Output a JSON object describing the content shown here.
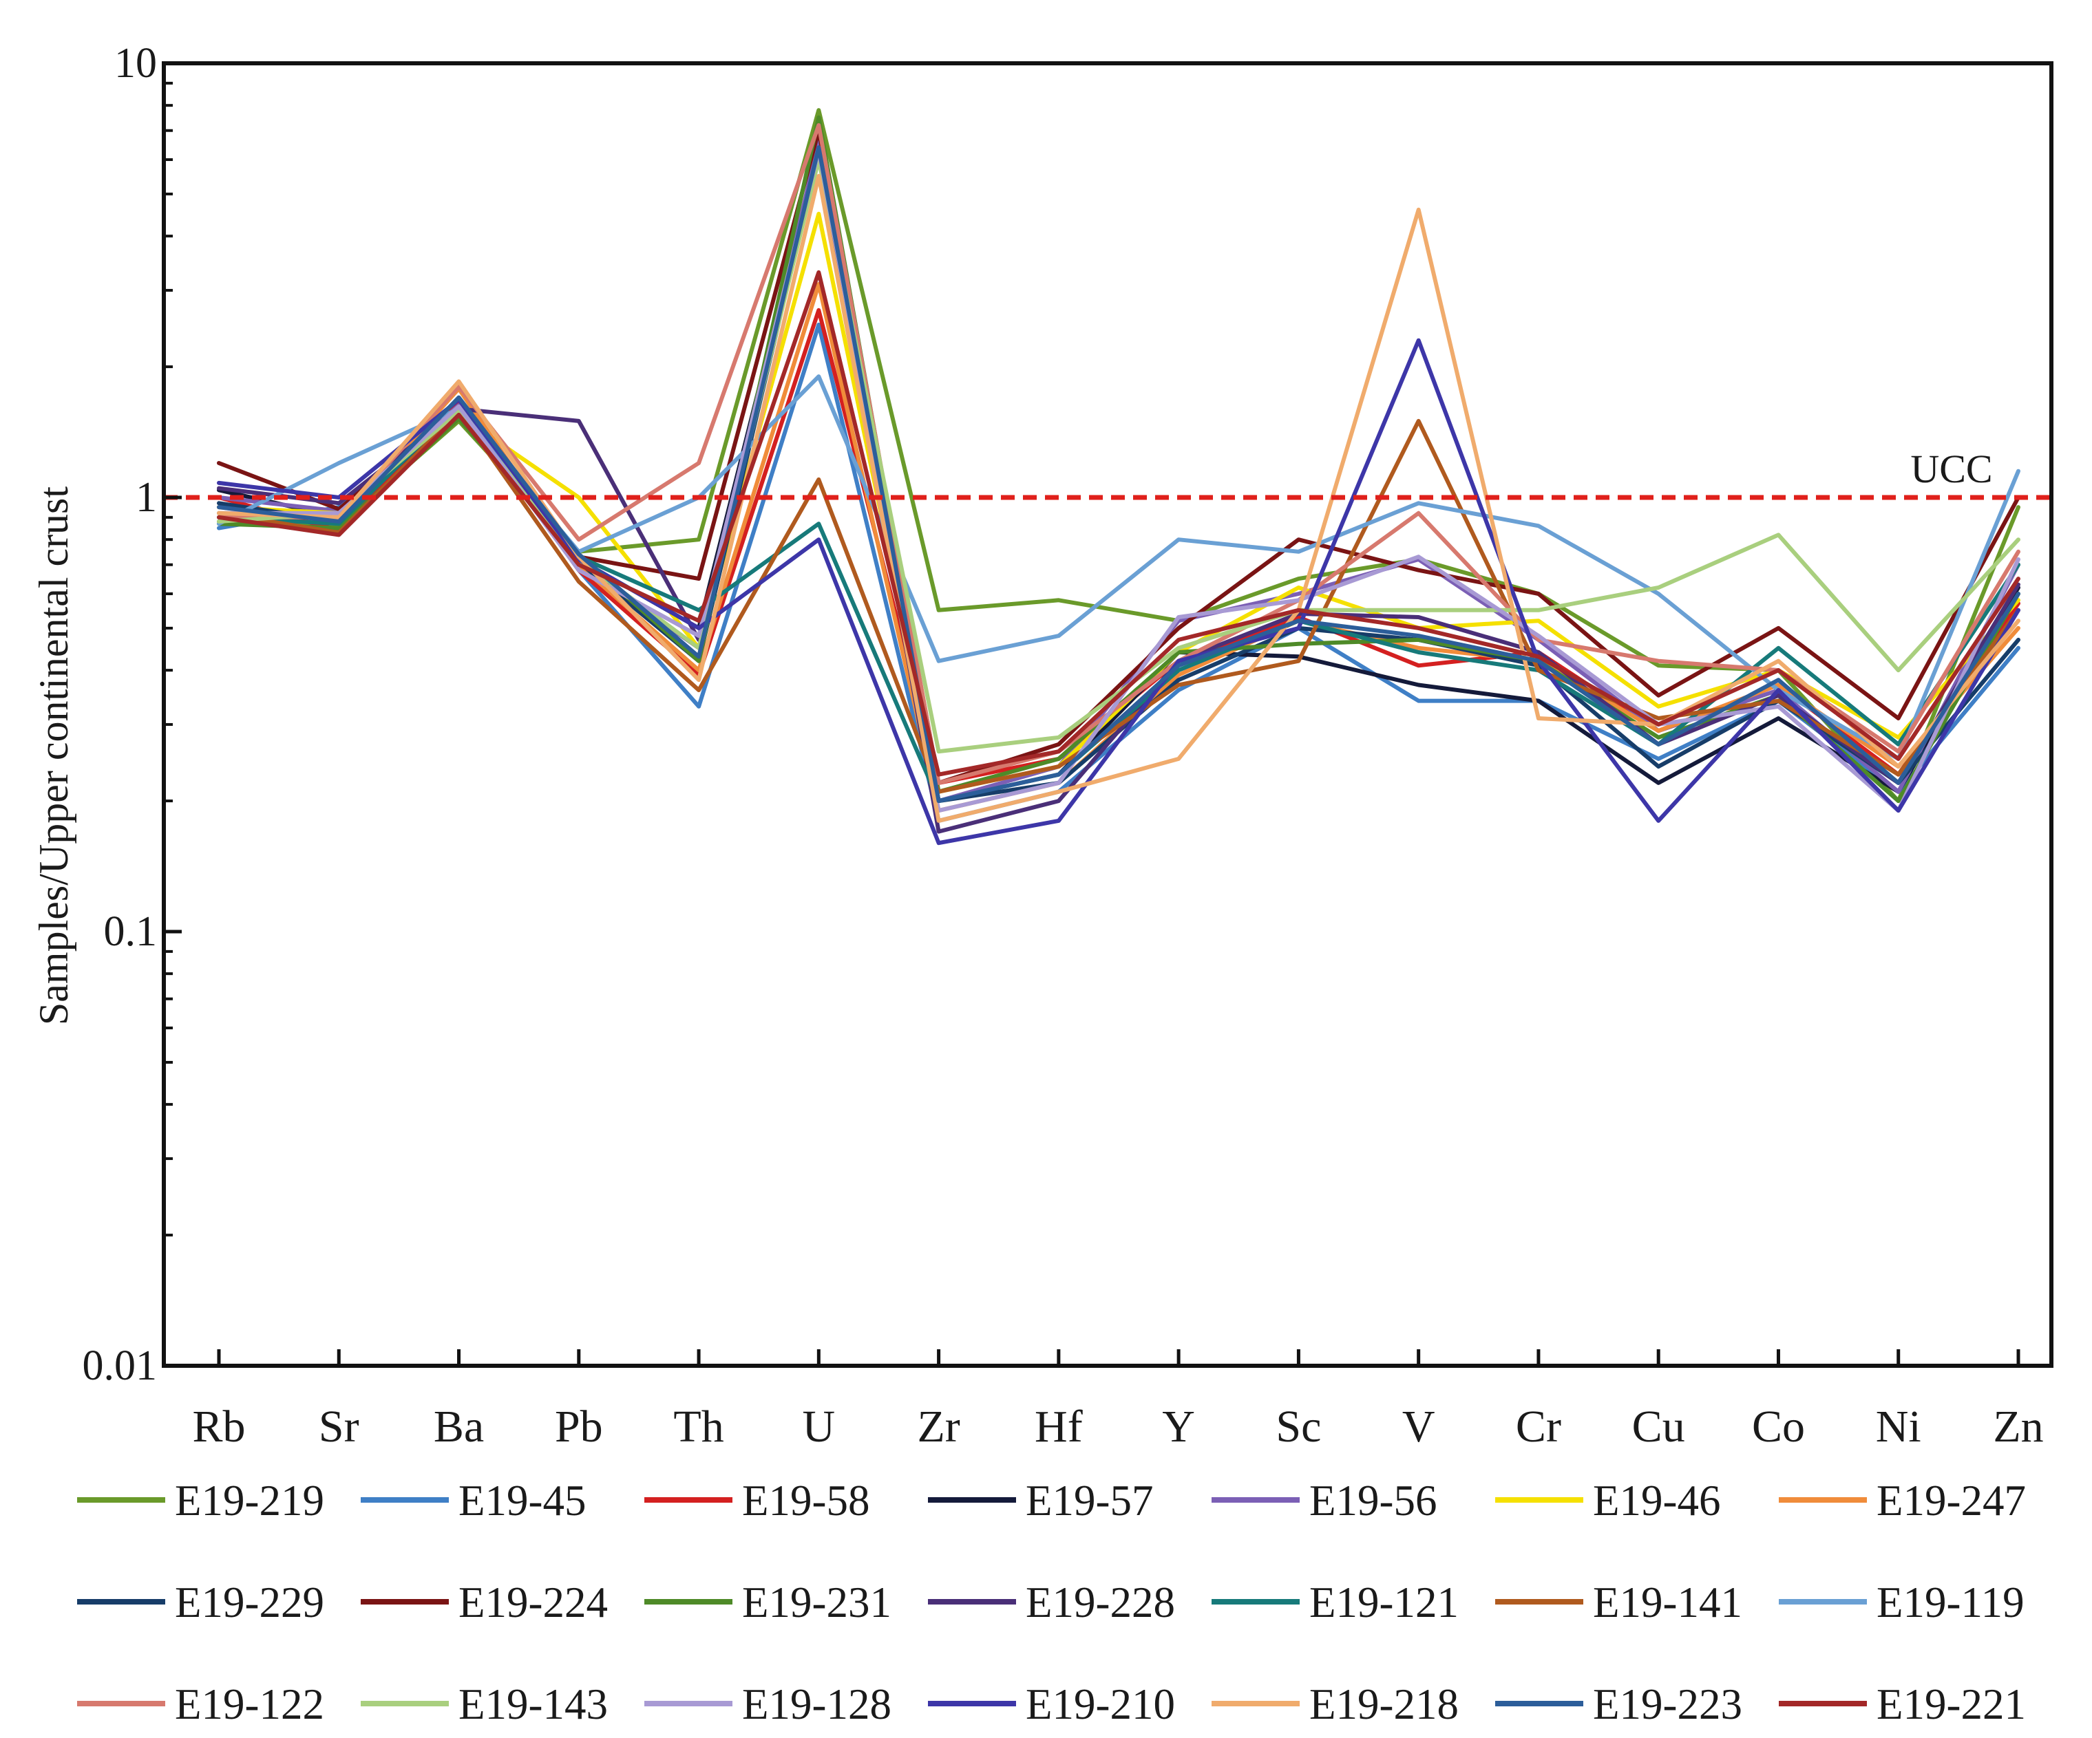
{
  "chart_data": {
    "type": "line",
    "title": "",
    "xlabel": "",
    "ylabel": "Samples/Upper continental crust",
    "yscale": "log",
    "ylim": [
      0.01,
      10
    ],
    "yticks": [
      {
        "value": 10,
        "label": "10"
      },
      {
        "value": 1,
        "label": "1"
      },
      {
        "value": 0.1,
        "label": "0.1"
      },
      {
        "value": 0.01,
        "label": "0.01"
      }
    ],
    "categories": [
      "Rb",
      "Sr",
      "Ba",
      "Pb",
      "Th",
      "U",
      "Zr",
      "Hf",
      "Y",
      "Sc",
      "V",
      "Cr",
      "Cu",
      "Co",
      "Ni",
      "Zn"
    ],
    "reference_line": {
      "value": 1,
      "label": "UCC",
      "color": "#e0201b"
    },
    "legend_position": "bottom",
    "series": [
      {
        "name": "E19-219",
        "color": "#6a9a2a",
        "values": [
          0.88,
          0.86,
          1.5,
          0.75,
          0.8,
          7.8,
          0.55,
          0.58,
          0.52,
          0.65,
          0.72,
          0.6,
          0.41,
          0.4,
          0.2,
          0.95
        ]
      },
      {
        "name": "E19-45",
        "color": "#3f7fc6",
        "values": [
          0.85,
          0.95,
          1.65,
          0.68,
          0.33,
          2.5,
          0.18,
          0.21,
          0.36,
          0.5,
          0.34,
          0.34,
          0.25,
          0.34,
          0.21,
          0.45
        ]
      },
      {
        "name": "E19-58",
        "color": "#d42020",
        "values": [
          1.0,
          0.84,
          1.65,
          0.68,
          0.39,
          2.7,
          0.22,
          0.25,
          0.42,
          0.53,
          0.41,
          0.44,
          0.29,
          0.37,
          0.23,
          0.57
        ]
      },
      {
        "name": "E19-57",
        "color": "#141a3a",
        "values": [
          1.04,
          0.9,
          1.6,
          0.72,
          0.5,
          6.3,
          0.2,
          0.23,
          0.44,
          0.43,
          0.37,
          0.34,
          0.22,
          0.31,
          0.21,
          0.62
        ]
      },
      {
        "name": "E19-56",
        "color": "#7b5fb5",
        "values": [
          1.0,
          0.93,
          1.63,
          0.7,
          0.45,
          6.6,
          0.2,
          0.24,
          0.52,
          0.6,
          0.72,
          0.47,
          0.29,
          0.36,
          0.21,
          0.7
        ]
      },
      {
        "name": "E19-46",
        "color": "#f5e000",
        "values": [
          0.95,
          0.92,
          1.55,
          1.0,
          0.45,
          4.5,
          0.21,
          0.24,
          0.44,
          0.62,
          0.5,
          0.52,
          0.33,
          0.4,
          0.28,
          0.58
        ]
      },
      {
        "name": "E19-247",
        "color": "#f08c3a",
        "values": [
          0.95,
          0.88,
          1.78,
          0.7,
          0.4,
          3.1,
          0.19,
          0.22,
          0.39,
          0.52,
          0.45,
          0.42,
          0.29,
          0.37,
          0.24,
          0.5
        ]
      },
      {
        "name": "E19-229",
        "color": "#173d69",
        "values": [
          0.97,
          0.88,
          1.6,
          0.71,
          0.42,
          6.2,
          0.2,
          0.22,
          0.38,
          0.5,
          0.47,
          0.41,
          0.24,
          0.34,
          0.22,
          0.47
        ]
      },
      {
        "name": "E19-224",
        "color": "#7a1414",
        "values": [
          1.2,
          0.94,
          1.6,
          0.73,
          0.65,
          7.0,
          0.22,
          0.27,
          0.5,
          0.8,
          0.68,
          0.6,
          0.35,
          0.5,
          0.31,
          1.0
        ]
      },
      {
        "name": "E19-231",
        "color": "#4e8a28",
        "values": [
          0.87,
          0.85,
          1.52,
          0.74,
          0.42,
          7.5,
          0.21,
          0.25,
          0.44,
          0.46,
          0.47,
          0.42,
          0.28,
          0.35,
          0.2,
          0.6
        ]
      },
      {
        "name": "E19-228",
        "color": "#4a2f78",
        "values": [
          1.05,
          0.97,
          1.6,
          1.5,
          0.47,
          6.1,
          0.17,
          0.2,
          0.42,
          0.54,
          0.53,
          0.44,
          0.27,
          0.35,
          0.22,
          0.63
        ]
      },
      {
        "name": "E19-121",
        "color": "#177a7a",
        "values": [
          0.9,
          0.87,
          1.62,
          0.73,
          0.55,
          0.87,
          0.2,
          0.23,
          0.4,
          0.52,
          0.44,
          0.4,
          0.27,
          0.45,
          0.27,
          0.7
        ]
      },
      {
        "name": "E19-141",
        "color": "#b05a1e",
        "values": [
          0.92,
          0.83,
          1.58,
          0.64,
          0.36,
          1.1,
          0.21,
          0.24,
          0.37,
          0.42,
          1.5,
          0.4,
          0.31,
          0.34,
          0.23,
          0.55
        ]
      },
      {
        "name": "E19-119",
        "color": "#6aa0d4",
        "values": [
          0.87,
          1.2,
          1.6,
          0.75,
          1.0,
          1.9,
          0.42,
          0.48,
          0.8,
          0.75,
          0.97,
          0.86,
          0.6,
          0.36,
          0.25,
          1.15
        ]
      },
      {
        "name": "E19-122",
        "color": "#d7796e",
        "values": [
          0.9,
          0.9,
          1.8,
          0.8,
          1.2,
          7.2,
          0.22,
          0.26,
          0.42,
          0.58,
          0.92,
          0.47,
          0.42,
          0.4,
          0.26,
          0.75
        ]
      },
      {
        "name": "E19-143",
        "color": "#a9cf7e",
        "values": [
          0.88,
          0.92,
          1.58,
          0.72,
          0.45,
          6.0,
          0.26,
          0.28,
          0.45,
          0.55,
          0.55,
          0.55,
          0.62,
          0.82,
          0.4,
          0.8
        ]
      },
      {
        "name": "E19-128",
        "color": "#a89ad4",
        "values": [
          0.92,
          0.92,
          1.62,
          0.68,
          0.48,
          6.3,
          0.19,
          0.22,
          0.53,
          0.58,
          0.73,
          0.48,
          0.3,
          0.33,
          0.19,
          0.72
        ]
      },
      {
        "name": "E19-210",
        "color": "#3d36a8",
        "values": [
          1.08,
          1.0,
          1.68,
          0.72,
          0.5,
          0.8,
          0.16,
          0.18,
          0.42,
          0.5,
          2.3,
          0.42,
          0.18,
          0.36,
          0.19,
          0.55
        ]
      },
      {
        "name": "E19-218",
        "color": "#f0ab6c",
        "values": [
          0.92,
          0.9,
          1.85,
          0.73,
          0.38,
          5.5,
          0.18,
          0.21,
          0.25,
          0.55,
          4.6,
          0.31,
          0.3,
          0.42,
          0.24,
          0.52
        ]
      },
      {
        "name": "E19-223",
        "color": "#2c5e9a",
        "values": [
          0.95,
          0.88,
          1.7,
          0.74,
          0.43,
          6.4,
          0.2,
          0.23,
          0.41,
          0.52,
          0.48,
          0.42,
          0.27,
          0.38,
          0.22,
          0.6
        ]
      },
      {
        "name": "E19-221",
        "color": "#a32828",
        "values": [
          0.9,
          0.82,
          1.55,
          0.7,
          0.52,
          3.3,
          0.23,
          0.26,
          0.47,
          0.55,
          0.5,
          0.43,
          0.3,
          0.4,
          0.25,
          0.65
        ]
      }
    ]
  }
}
